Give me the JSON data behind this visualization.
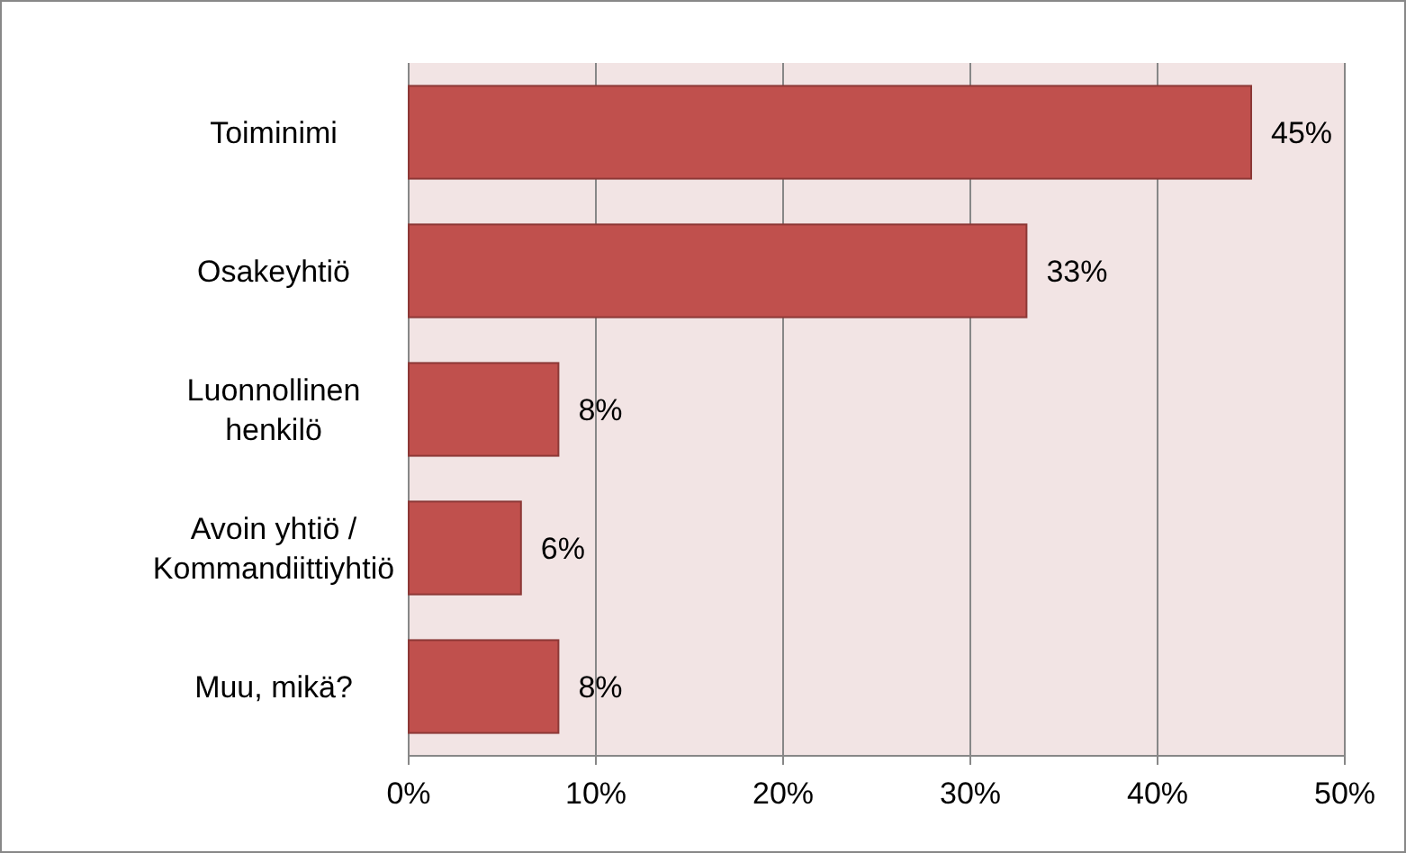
{
  "chart_data": {
    "type": "bar",
    "orientation": "horizontal",
    "categories": [
      "Toiminimi",
      "Osakeyhtiö",
      "Luonnollinen henkilö",
      "Avoin yhtiö / Kommandiittiyhtiö",
      "Muu, mikä?"
    ],
    "values": [
      45,
      33,
      8,
      6,
      8
    ],
    "value_labels": [
      "45%",
      "33%",
      "8%",
      "6%",
      "8%"
    ],
    "color": "#c0504d",
    "xlim": [
      0,
      50
    ],
    "xticks": [
      {
        "value": 0,
        "label": "0%"
      },
      {
        "value": 10,
        "label": "10%"
      },
      {
        "value": 20,
        "label": "20%"
      },
      {
        "value": 30,
        "label": "30%"
      },
      {
        "value": 40,
        "label": "40%"
      },
      {
        "value": 50,
        "label": "50%"
      }
    ],
    "grid": "x"
  }
}
